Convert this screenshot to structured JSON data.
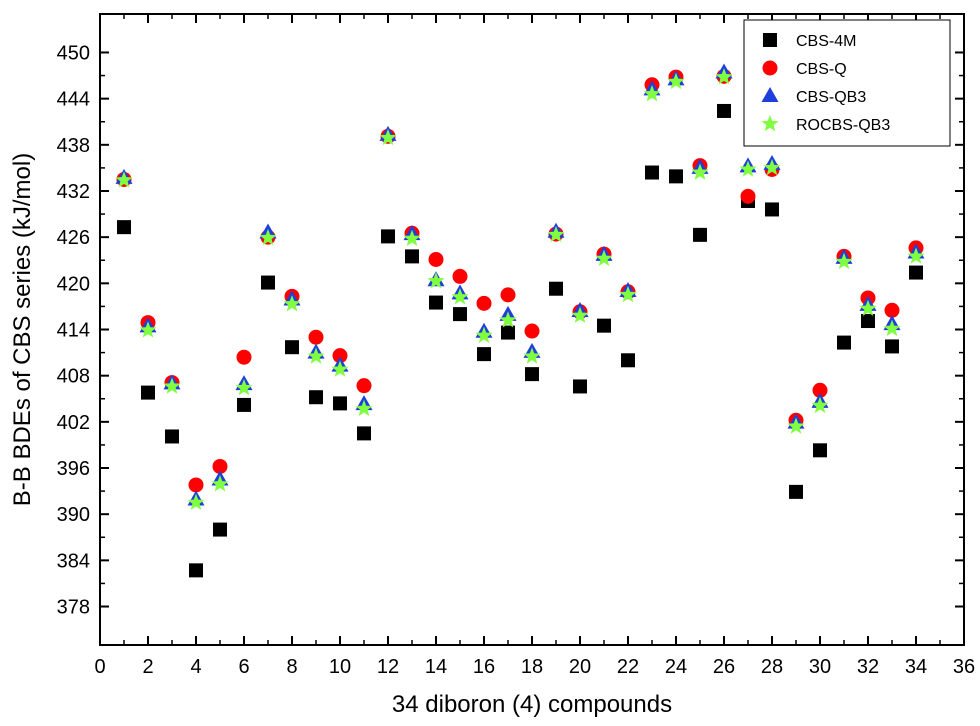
{
  "chart_data": {
    "type": "scatter",
    "title": "",
    "xlabel": "34 diboron (4) compounds",
    "ylabel": "B-B BDEs of CBS series (kJ/mol)",
    "xlim": [
      0,
      36
    ],
    "ylim": [
      373,
      455
    ],
    "x_ticks": [
      0,
      2,
      4,
      6,
      8,
      10,
      12,
      14,
      16,
      18,
      20,
      22,
      24,
      26,
      28,
      30,
      32,
      34,
      36
    ],
    "y_ticks": [
      378,
      384,
      390,
      396,
      402,
      408,
      414,
      420,
      426,
      432,
      438,
      444,
      450
    ],
    "legend_position": "top-right",
    "x": [
      1,
      2,
      3,
      4,
      5,
      6,
      7,
      8,
      9,
      10,
      11,
      12,
      13,
      14,
      15,
      16,
      17,
      18,
      19,
      20,
      21,
      22,
      23,
      24,
      25,
      26,
      27,
      28,
      29,
      30,
      31,
      32,
      33,
      34
    ],
    "series": [
      {
        "name": "CBS-4M",
        "marker": "square",
        "color": "#000000",
        "values": [
          427.3,
          405.8,
          400.1,
          382.7,
          388.0,
          404.2,
          420.1,
          411.7,
          405.2,
          404.4,
          400.5,
          426.1,
          423.5,
          417.5,
          416.0,
          410.8,
          413.6,
          408.2,
          419.3,
          406.6,
          414.5,
          410.0,
          434.4,
          433.9,
          426.3,
          442.4,
          430.7,
          429.6,
          392.9,
          398.3,
          412.3,
          415.1,
          411.8,
          421.4
        ]
      },
      {
        "name": "CBS-Q",
        "marker": "circle",
        "color": "#ff0000",
        "values": [
          433.5,
          414.9,
          407.1,
          393.8,
          396.2,
          410.4,
          426.0,
          418.3,
          413.0,
          410.6,
          406.7,
          439.1,
          426.5,
          423.1,
          420.9,
          417.4,
          418.5,
          413.8,
          426.4,
          416.3,
          423.8,
          418.9,
          445.8,
          446.8,
          435.3,
          446.9,
          431.3,
          434.8,
          402.2,
          406.1,
          423.5,
          418.1,
          416.5,
          424.6
        ]
      },
      {
        "name": "CBS-QB3",
        "marker": "triangle",
        "color": "#1f3fdc",
        "values": [
          433.7,
          414.4,
          407.0,
          391.9,
          394.5,
          406.9,
          426.6,
          417.9,
          411.0,
          409.3,
          404.3,
          439.3,
          426.4,
          420.4,
          418.7,
          413.7,
          415.9,
          411.1,
          426.7,
          416.4,
          423.7,
          419.0,
          445.2,
          446.5,
          435.0,
          447.4,
          435.2,
          435.5,
          401.9,
          404.6,
          423.3,
          417.2,
          414.7,
          424.0
        ]
      },
      {
        "name": "ROCBS-QB3",
        "marker": "star",
        "color": "#7fff3f",
        "values": [
          433.4,
          413.9,
          406.6,
          391.5,
          393.9,
          406.4,
          425.9,
          417.3,
          410.5,
          408.8,
          403.7,
          438.9,
          425.8,
          420.3,
          418.2,
          413.2,
          415.2,
          410.5,
          426.3,
          415.8,
          423.2,
          418.5,
          444.6,
          446.2,
          434.4,
          446.8,
          434.8,
          435.0,
          401.4,
          404.1,
          422.8,
          416.7,
          414.1,
          423.5
        ]
      }
    ]
  }
}
